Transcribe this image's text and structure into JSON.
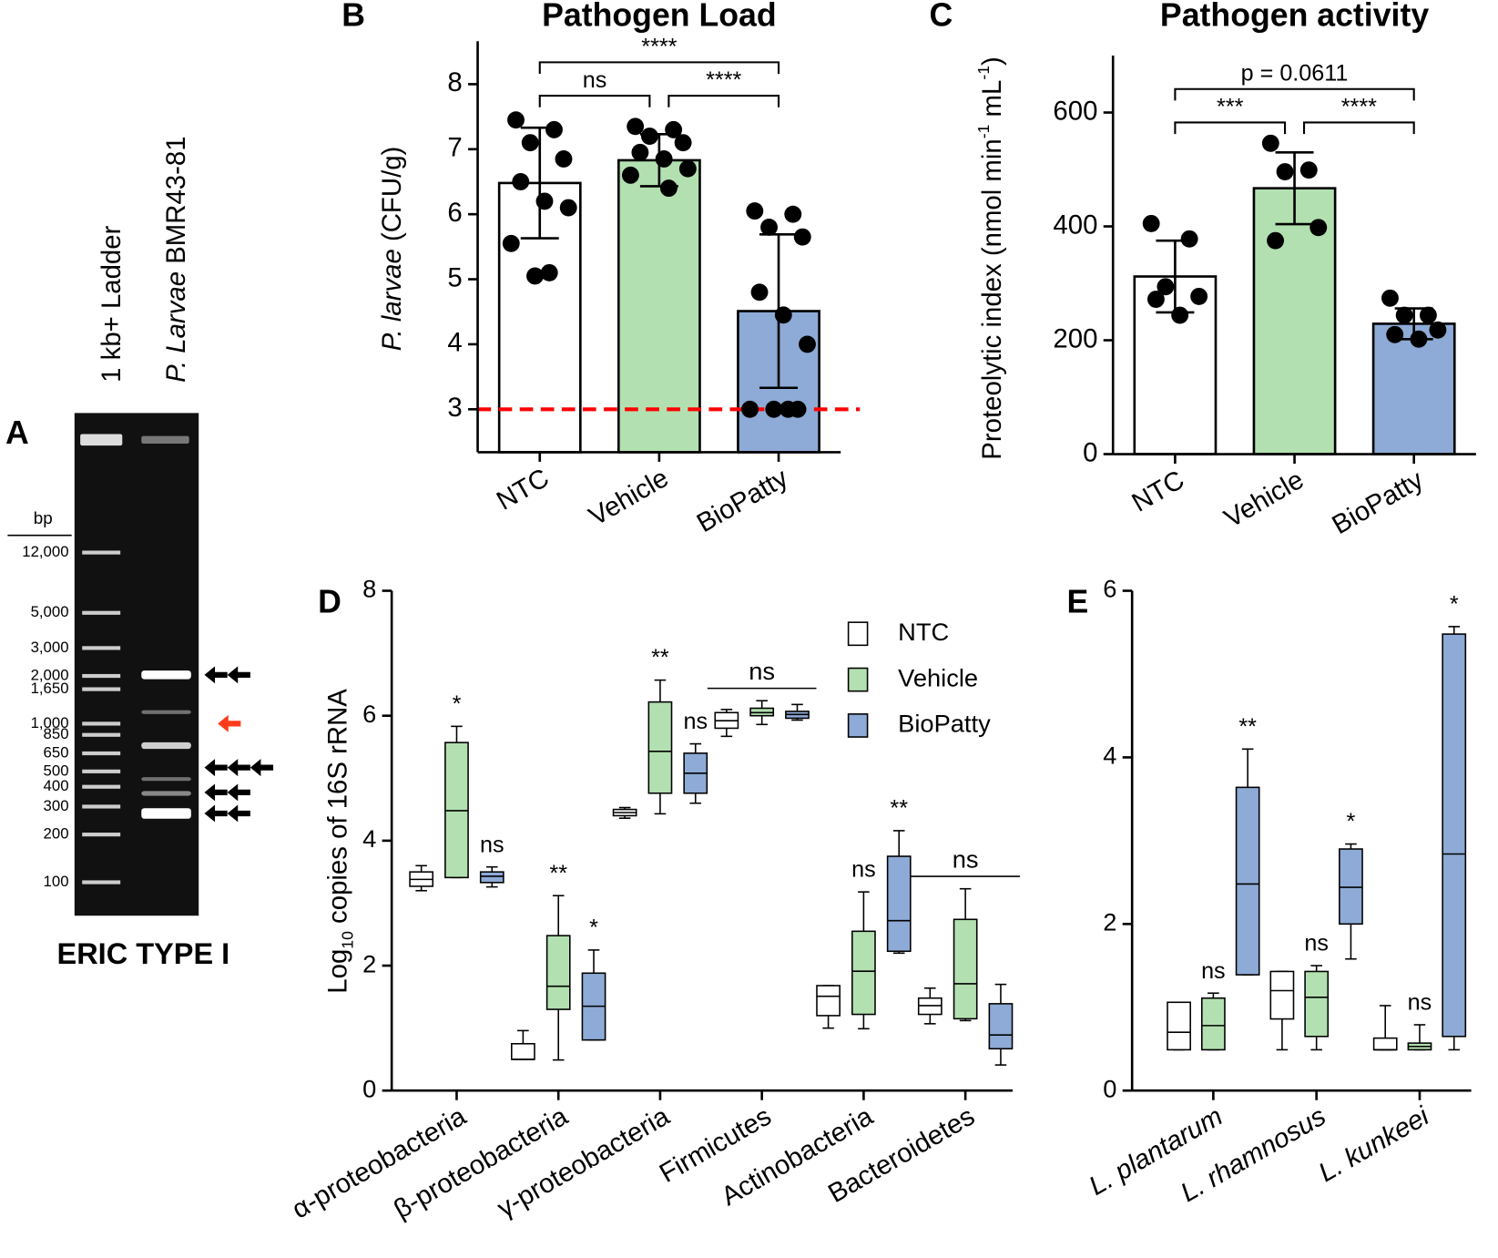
{
  "chart_data": [
    {
      "type": "gel",
      "panel": "A",
      "title": "ERIC TYPE I",
      "lanes": [
        [
          {
            "text": "1 kb+ Ladder"
          }
        ],
        [
          {
            "text": "P. Larvae",
            "style": "italic"
          },
          {
            "text": " BMR43-81"
          }
        ]
      ],
      "y_label": "bp",
      "log": true,
      "ylim": [
        100,
        12000
      ],
      "yticks": [
        {
          "value": 12000,
          "label": "12,000"
        },
        {
          "value": 5000,
          "label": "5,000"
        },
        {
          "value": 3000,
          "label": "3,000"
        },
        {
          "value": 2000,
          "label": "2,000"
        },
        {
          "value": 1650,
          "label": "1,650"
        },
        {
          "value": 1000,
          "label": "1,000"
        },
        850,
        650,
        500,
        400,
        300,
        200,
        100
      ]
    },
    {
      "type": "bar",
      "panel": "B",
      "title": "Pathogen Load",
      "y_label": [
        {
          "text": "P. larvae",
          "style": "italic"
        },
        {
          "text": " (CFU/g)"
        }
      ],
      "categories": [
        "NTC",
        "Vehicle",
        "BioPatty"
      ],
      "values": [
        6.48,
        6.83,
        4.51
      ],
      "errors": [
        0.85,
        0.4,
        1.18
      ],
      "points": [
        [
          7.45,
          7.3,
          7.1,
          6.85,
          6.5,
          6.2,
          6.1,
          5.55,
          5.1,
          5.05
        ],
        [
          7.35,
          7.3,
          7.2,
          7.1,
          6.95,
          6.85,
          6.7,
          6.6,
          6.4
        ],
        [
          6.05,
          6.0,
          5.8,
          5.65,
          4.8,
          4.45,
          4.0,
          3.0,
          3.0,
          3.0,
          3.0
        ]
      ],
      "colors": [
        "#ffffff",
        "#b3e0b0",
        "#8eaad6"
      ],
      "reference_line": {
        "value": 3,
        "color": "#ff0000"
      },
      "ylim": [
        2.34,
        8.66
      ],
      "yticks": [
        3,
        4,
        5,
        6,
        7,
        8
      ],
      "annotations": [
        {
          "text": "ns",
          "from": 0,
          "to": 1
        },
        {
          "text": "****",
          "from": 1,
          "to": 2
        },
        {
          "text": "****",
          "from": 0,
          "to": 2
        }
      ]
    },
    {
      "type": "bar",
      "panel": "C",
      "title": "Pathogen activity",
      "y_label": [
        {
          "text": "Proteolytic index (nmol min"
        },
        {
          "text": "-1",
          "style": "sup"
        },
        {
          "text": " mL"
        },
        {
          "text": "-1",
          "style": "sup"
        },
        {
          "text": ")"
        }
      ],
      "categories": [
        "NTC",
        "Vehicle",
        "BioPatty"
      ],
      "values": [
        312,
        467,
        229
      ],
      "errors": [
        63,
        63,
        27
      ],
      "points": [
        [
          405,
          378,
          294,
          277,
          272,
          244
        ],
        [
          546,
          499,
          496,
          398,
          375
        ],
        [
          274,
          244,
          244,
          218,
          210,
          202
        ]
      ],
      "colors": [
        "#ffffff",
        "#b3e0b0",
        "#8eaad6"
      ],
      "ylim": [
        0,
        700
      ],
      "yticks": [
        0,
        200,
        400,
        600
      ],
      "annotations": [
        {
          "text": "***",
          "from": 0,
          "to": 1
        },
        {
          "text": "****",
          "from": 1,
          "to": 2
        },
        {
          "text": "p = 0.0611",
          "from": 0,
          "to": 2
        }
      ]
    },
    {
      "type": "box",
      "panel": "D",
      "y_label": [
        {
          "text": "Log"
        },
        {
          "text": "10",
          "style": "sub"
        },
        {
          "text": " copies of 16S rRNA"
        }
      ],
      "categories": [
        "α-proteobacteria",
        "β-proteobacteria",
        "γ-proteobacteria",
        "Firmicutes",
        "Actinobacteria",
        "Bacteroidetes"
      ],
      "series": [
        {
          "name": "NTC",
          "color": "#ffffff",
          "values": [
            {
              "min": 3.2,
              "q1": 3.27,
              "median": 3.38,
              "q3": 3.5,
              "max": 3.6
            },
            {
              "min": 0.5,
              "q1": 0.5,
              "median": 0.5,
              "q3": 0.75,
              "max": 0.96
            },
            {
              "min": 4.36,
              "q1": 4.4,
              "median": 4.45,
              "q3": 4.5,
              "max": 4.53
            },
            {
              "min": 5.67,
              "q1": 5.8,
              "median": 5.92,
              "q3": 6.05,
              "max": 6.1
            },
            {
              "min": 1.0,
              "q1": 1.2,
              "median": 1.51,
              "q3": 1.68,
              "max": 1.68
            },
            {
              "min": 1.07,
              "q1": 1.22,
              "median": 1.36,
              "q3": 1.48,
              "max": 1.64
            }
          ]
        },
        {
          "name": "Vehicle",
          "color": "#b3e0b0",
          "values": [
            {
              "min": 3.41,
              "q1": 3.41,
              "median": 4.48,
              "q3": 5.57,
              "max": 5.83
            },
            {
              "min": 0.49,
              "q1": 1.3,
              "median": 1.67,
              "q3": 2.48,
              "max": 3.12
            },
            {
              "min": 4.43,
              "q1": 4.76,
              "median": 5.43,
              "q3": 6.22,
              "max": 6.57
            },
            {
              "min": 5.86,
              "q1": 6.0,
              "median": 6.05,
              "q3": 6.12,
              "max": 6.24
            },
            {
              "min": 0.99,
              "q1": 1.22,
              "median": 1.91,
              "q3": 2.55,
              "max": 3.18
            },
            {
              "min": 1.12,
              "q1": 1.15,
              "median": 1.71,
              "q3": 2.74,
              "max": 3.23
            }
          ]
        },
        {
          "name": "BioPatty",
          "color": "#8eaad6",
          "values": [
            {
              "min": 3.26,
              "q1": 3.33,
              "median": 3.43,
              "q3": 3.5,
              "max": 3.58
            },
            {
              "min": 0.81,
              "q1": 0.81,
              "median": 1.35,
              "q3": 1.88,
              "max": 2.25
            },
            {
              "min": 4.6,
              "q1": 4.76,
              "median": 5.08,
              "q3": 5.4,
              "max": 5.55
            },
            {
              "min": 5.93,
              "q1": 5.96,
              "median": 6.02,
              "q3": 6.07,
              "max": 6.18
            },
            {
              "min": 2.2,
              "q1": 2.23,
              "median": 2.72,
              "q3": 3.75,
              "max": 4.16
            },
            {
              "min": 0.41,
              "q1": 0.67,
              "median": 0.89,
              "q3": 1.39,
              "max": 1.7
            }
          ]
        }
      ],
      "ylim": [
        0,
        8
      ],
      "yticks": [
        0,
        2,
        4,
        6,
        8
      ],
      "legend": "upper right",
      "annotations": [
        {
          "text": "*",
          "category": 0,
          "series": 1
        },
        {
          "text": "ns",
          "category": 0,
          "series": 2
        },
        {
          "text": "**",
          "category": 1,
          "series": 1
        },
        {
          "text": "*",
          "category": 1,
          "series": 2
        },
        {
          "text": "**",
          "category": 2,
          "series": 1
        },
        {
          "text": "ns",
          "category": 2,
          "series": 2
        },
        {
          "text": "ns",
          "category": 3
        },
        {
          "text": "ns",
          "category": 4,
          "series": 1
        },
        {
          "text": "**",
          "category": 4,
          "series": 2
        },
        {
          "text": "ns",
          "category": 5
        }
      ]
    },
    {
      "type": "box",
      "panel": "E",
      "category_style": "italic",
      "categories": [
        "L. plantarum",
        "L. rhamnosus",
        "L. kunkeei"
      ],
      "series": [
        {
          "name": "NTC",
          "color": "#ffffff",
          "values": [
            {
              "min": 0.49,
              "q1": 0.49,
              "median": 0.7,
              "q3": 1.06,
              "max": 1.06
            },
            {
              "min": 0.49,
              "q1": 0.86,
              "median": 1.2,
              "q3": 1.43,
              "max": 1.43
            },
            {
              "min": 0.49,
              "q1": 0.49,
              "median": 0.49,
              "q3": 0.63,
              "max": 1.02
            }
          ]
        },
        {
          "name": "Vehicle",
          "color": "#b3e0b0",
          "values": [
            {
              "min": 0.49,
              "q1": 0.49,
              "median": 0.78,
              "q3": 1.11,
              "max": 1.17
            },
            {
              "min": 0.49,
              "q1": 0.65,
              "median": 1.12,
              "q3": 1.43,
              "max": 1.5
            },
            {
              "min": 0.49,
              "q1": 0.49,
              "median": 0.53,
              "q3": 0.57,
              "max": 0.79
            }
          ]
        },
        {
          "name": "BioPatty",
          "color": "#8eaad6",
          "values": [
            {
              "min": 1.39,
              "q1": 1.39,
              "median": 2.48,
              "q3": 3.64,
              "max": 4.1
            },
            {
              "min": 1.58,
              "q1": 2.0,
              "median": 2.44,
              "q3": 2.9,
              "max": 2.96
            },
            {
              "min": 0.49,
              "q1": 0.65,
              "median": 2.84,
              "q3": 5.48,
              "max": 5.57
            }
          ]
        }
      ],
      "ylim": [
        0,
        6
      ],
      "yticks": [
        0,
        2,
        4,
        6
      ],
      "annotations": [
        {
          "text": "ns",
          "category": 0,
          "series": 1
        },
        {
          "text": "**",
          "category": 0,
          "series": 2
        },
        {
          "text": "ns",
          "category": 1,
          "series": 1
        },
        {
          "text": "*",
          "category": 1,
          "series": 2
        },
        {
          "text": "ns",
          "category": 2,
          "series": 1
        },
        {
          "text": "*",
          "category": 2,
          "series": 2
        }
      ]
    }
  ]
}
